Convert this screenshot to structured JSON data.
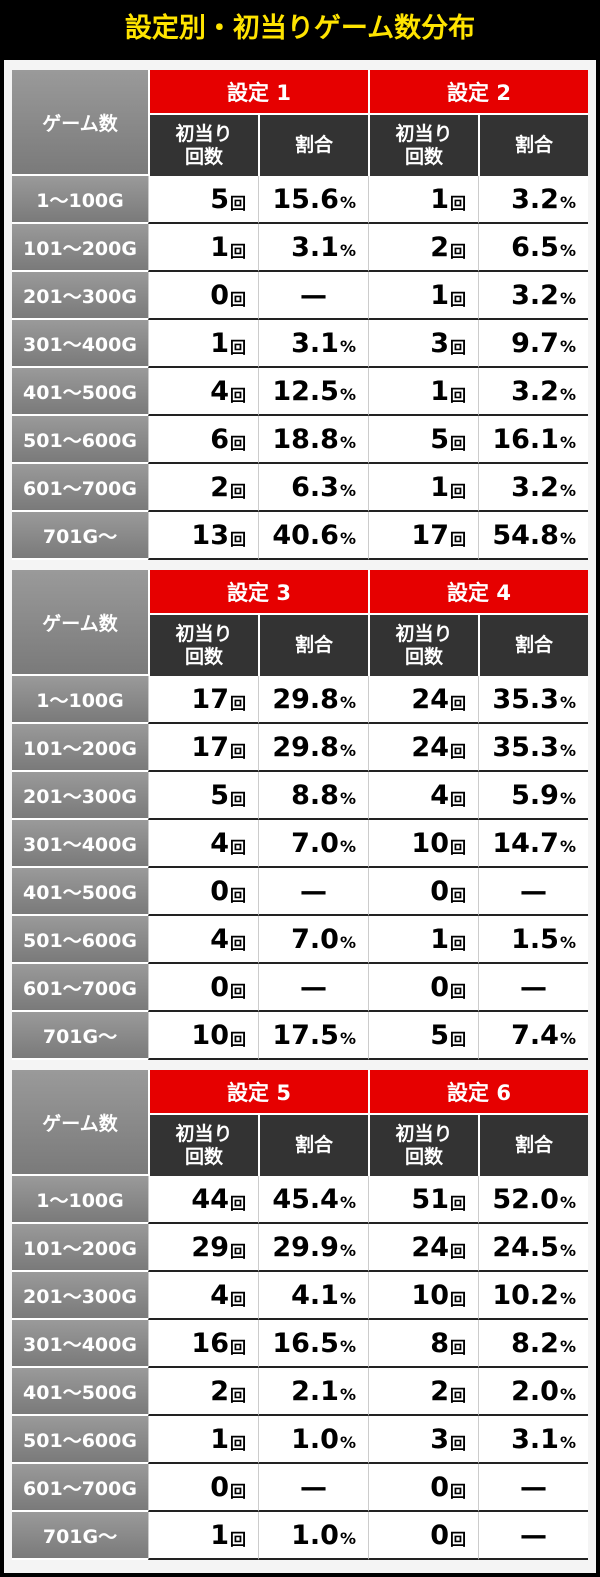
{
  "header": {
    "title": "設定別・初当りゲーム数分布"
  },
  "tables": [
    {
      "row_header": "ゲーム数",
      "settings": [
        {
          "name": "設定 1",
          "count_header": [
            "初当り",
            "回数"
          ],
          "ratio_header": "割合"
        },
        {
          "name": "設定 2",
          "count_header": [
            "初当り",
            "回数"
          ],
          "ratio_header": "割合"
        }
      ],
      "rows": [
        {
          "label": "1～100G",
          "cells": [
            [
              "5",
              "回"
            ],
            [
              "15.6",
              "%"
            ],
            [
              "1",
              "回"
            ],
            [
              "3.2",
              "%"
            ]
          ]
        },
        {
          "label": "101～200G",
          "cells": [
            [
              "1",
              "回"
            ],
            [
              "3.1",
              "%"
            ],
            [
              "2",
              "回"
            ],
            [
              "6.5",
              "%"
            ]
          ]
        },
        {
          "label": "201～300G",
          "cells": [
            [
              "0",
              "回"
            ],
            [
              "—"
            ],
            [
              "1",
              "回"
            ],
            [
              "3.2",
              "%"
            ]
          ]
        },
        {
          "label": "301～400G",
          "cells": [
            [
              "1",
              "回"
            ],
            [
              "3.1",
              "%"
            ],
            [
              "3",
              "回"
            ],
            [
              "9.7",
              "%"
            ]
          ]
        },
        {
          "label": "401～500G",
          "cells": [
            [
              "4",
              "回"
            ],
            [
              "12.5",
              "%"
            ],
            [
              "1",
              "回"
            ],
            [
              "3.2",
              "%"
            ]
          ]
        },
        {
          "label": "501～600G",
          "cells": [
            [
              "6",
              "回"
            ],
            [
              "18.8",
              "%"
            ],
            [
              "5",
              "回"
            ],
            [
              "16.1",
              "%"
            ]
          ]
        },
        {
          "label": "601～700G",
          "cells": [
            [
              "2",
              "回"
            ],
            [
              "6.3",
              "%"
            ],
            [
              "1",
              "回"
            ],
            [
              "3.2",
              "%"
            ]
          ]
        },
        {
          "label": "701G～",
          "cells": [
            [
              "13",
              "回"
            ],
            [
              "40.6",
              "%"
            ],
            [
              "17",
              "回"
            ],
            [
              "54.8",
              "%"
            ]
          ]
        }
      ]
    },
    {
      "row_header": "ゲーム数",
      "settings": [
        {
          "name": "設定 3",
          "count_header": [
            "初当り",
            "回数"
          ],
          "ratio_header": "割合"
        },
        {
          "name": "設定 4",
          "count_header": [
            "初当り",
            "回数"
          ],
          "ratio_header": "割合"
        }
      ],
      "rows": [
        {
          "label": "1～100G",
          "cells": [
            [
              "17",
              "回"
            ],
            [
              "29.8",
              "%"
            ],
            [
              "24",
              "回"
            ],
            [
              "35.3",
              "%"
            ]
          ]
        },
        {
          "label": "101～200G",
          "cells": [
            [
              "17",
              "回"
            ],
            [
              "29.8",
              "%"
            ],
            [
              "24",
              "回"
            ],
            [
              "35.3",
              "%"
            ]
          ]
        },
        {
          "label": "201～300G",
          "cells": [
            [
              "5",
              "回"
            ],
            [
              "8.8",
              "%"
            ],
            [
              "4",
              "回"
            ],
            [
              "5.9",
              "%"
            ]
          ]
        },
        {
          "label": "301～400G",
          "cells": [
            [
              "4",
              "回"
            ],
            [
              "7.0",
              "%"
            ],
            [
              "10",
              "回"
            ],
            [
              "14.7",
              "%"
            ]
          ]
        },
        {
          "label": "401～500G",
          "cells": [
            [
              "0",
              "回"
            ],
            [
              "—"
            ],
            [
              "0",
              "回"
            ],
            [
              "—"
            ]
          ]
        },
        {
          "label": "501～600G",
          "cells": [
            [
              "4",
              "回"
            ],
            [
              "7.0",
              "%"
            ],
            [
              "1",
              "回"
            ],
            [
              "1.5",
              "%"
            ]
          ]
        },
        {
          "label": "601～700G",
          "cells": [
            [
              "0",
              "回"
            ],
            [
              "—"
            ],
            [
              "0",
              "回"
            ],
            [
              "—"
            ]
          ]
        },
        {
          "label": "701G～",
          "cells": [
            [
              "10",
              "回"
            ],
            [
              "17.5",
              "%"
            ],
            [
              "5",
              "回"
            ],
            [
              "7.4",
              "%"
            ]
          ]
        }
      ]
    },
    {
      "row_header": "ゲーム数",
      "settings": [
        {
          "name": "設定 5",
          "count_header": [
            "初当り",
            "回数"
          ],
          "ratio_header": "割合"
        },
        {
          "name": "設定 6",
          "count_header": [
            "初当り",
            "回数"
          ],
          "ratio_header": "割合"
        }
      ],
      "rows": [
        {
          "label": "1～100G",
          "cells": [
            [
              "44",
              "回"
            ],
            [
              "45.4",
              "%"
            ],
            [
              "51",
              "回"
            ],
            [
              "52.0",
              "%"
            ]
          ]
        },
        {
          "label": "101～200G",
          "cells": [
            [
              "29",
              "回"
            ],
            [
              "29.9",
              "%"
            ],
            [
              "24",
              "回"
            ],
            [
              "24.5",
              "%"
            ]
          ]
        },
        {
          "label": "201～300G",
          "cells": [
            [
              "4",
              "回"
            ],
            [
              "4.1",
              "%"
            ],
            [
              "10",
              "回"
            ],
            [
              "10.2",
              "%"
            ]
          ]
        },
        {
          "label": "301～400G",
          "cells": [
            [
              "16",
              "回"
            ],
            [
              "16.5",
              "%"
            ],
            [
              "8",
              "回"
            ],
            [
              "8.2",
              "%"
            ]
          ]
        },
        {
          "label": "401～500G",
          "cells": [
            [
              "2",
              "回"
            ],
            [
              "2.1",
              "%"
            ],
            [
              "2",
              "回"
            ],
            [
              "2.0",
              "%"
            ]
          ]
        },
        {
          "label": "501～600G",
          "cells": [
            [
              "1",
              "回"
            ],
            [
              "1.0",
              "%"
            ],
            [
              "3",
              "回"
            ],
            [
              "3.1",
              "%"
            ]
          ]
        },
        {
          "label": "601～700G",
          "cells": [
            [
              "0",
              "回"
            ],
            [
              "—"
            ],
            [
              "0",
              "回"
            ],
            [
              "—"
            ]
          ]
        },
        {
          "label": "701G～",
          "cells": [
            [
              "1",
              "回"
            ],
            [
              "1.0",
              "%"
            ],
            [
              "0",
              "回"
            ],
            [
              "—"
            ]
          ]
        }
      ]
    }
  ]
}
